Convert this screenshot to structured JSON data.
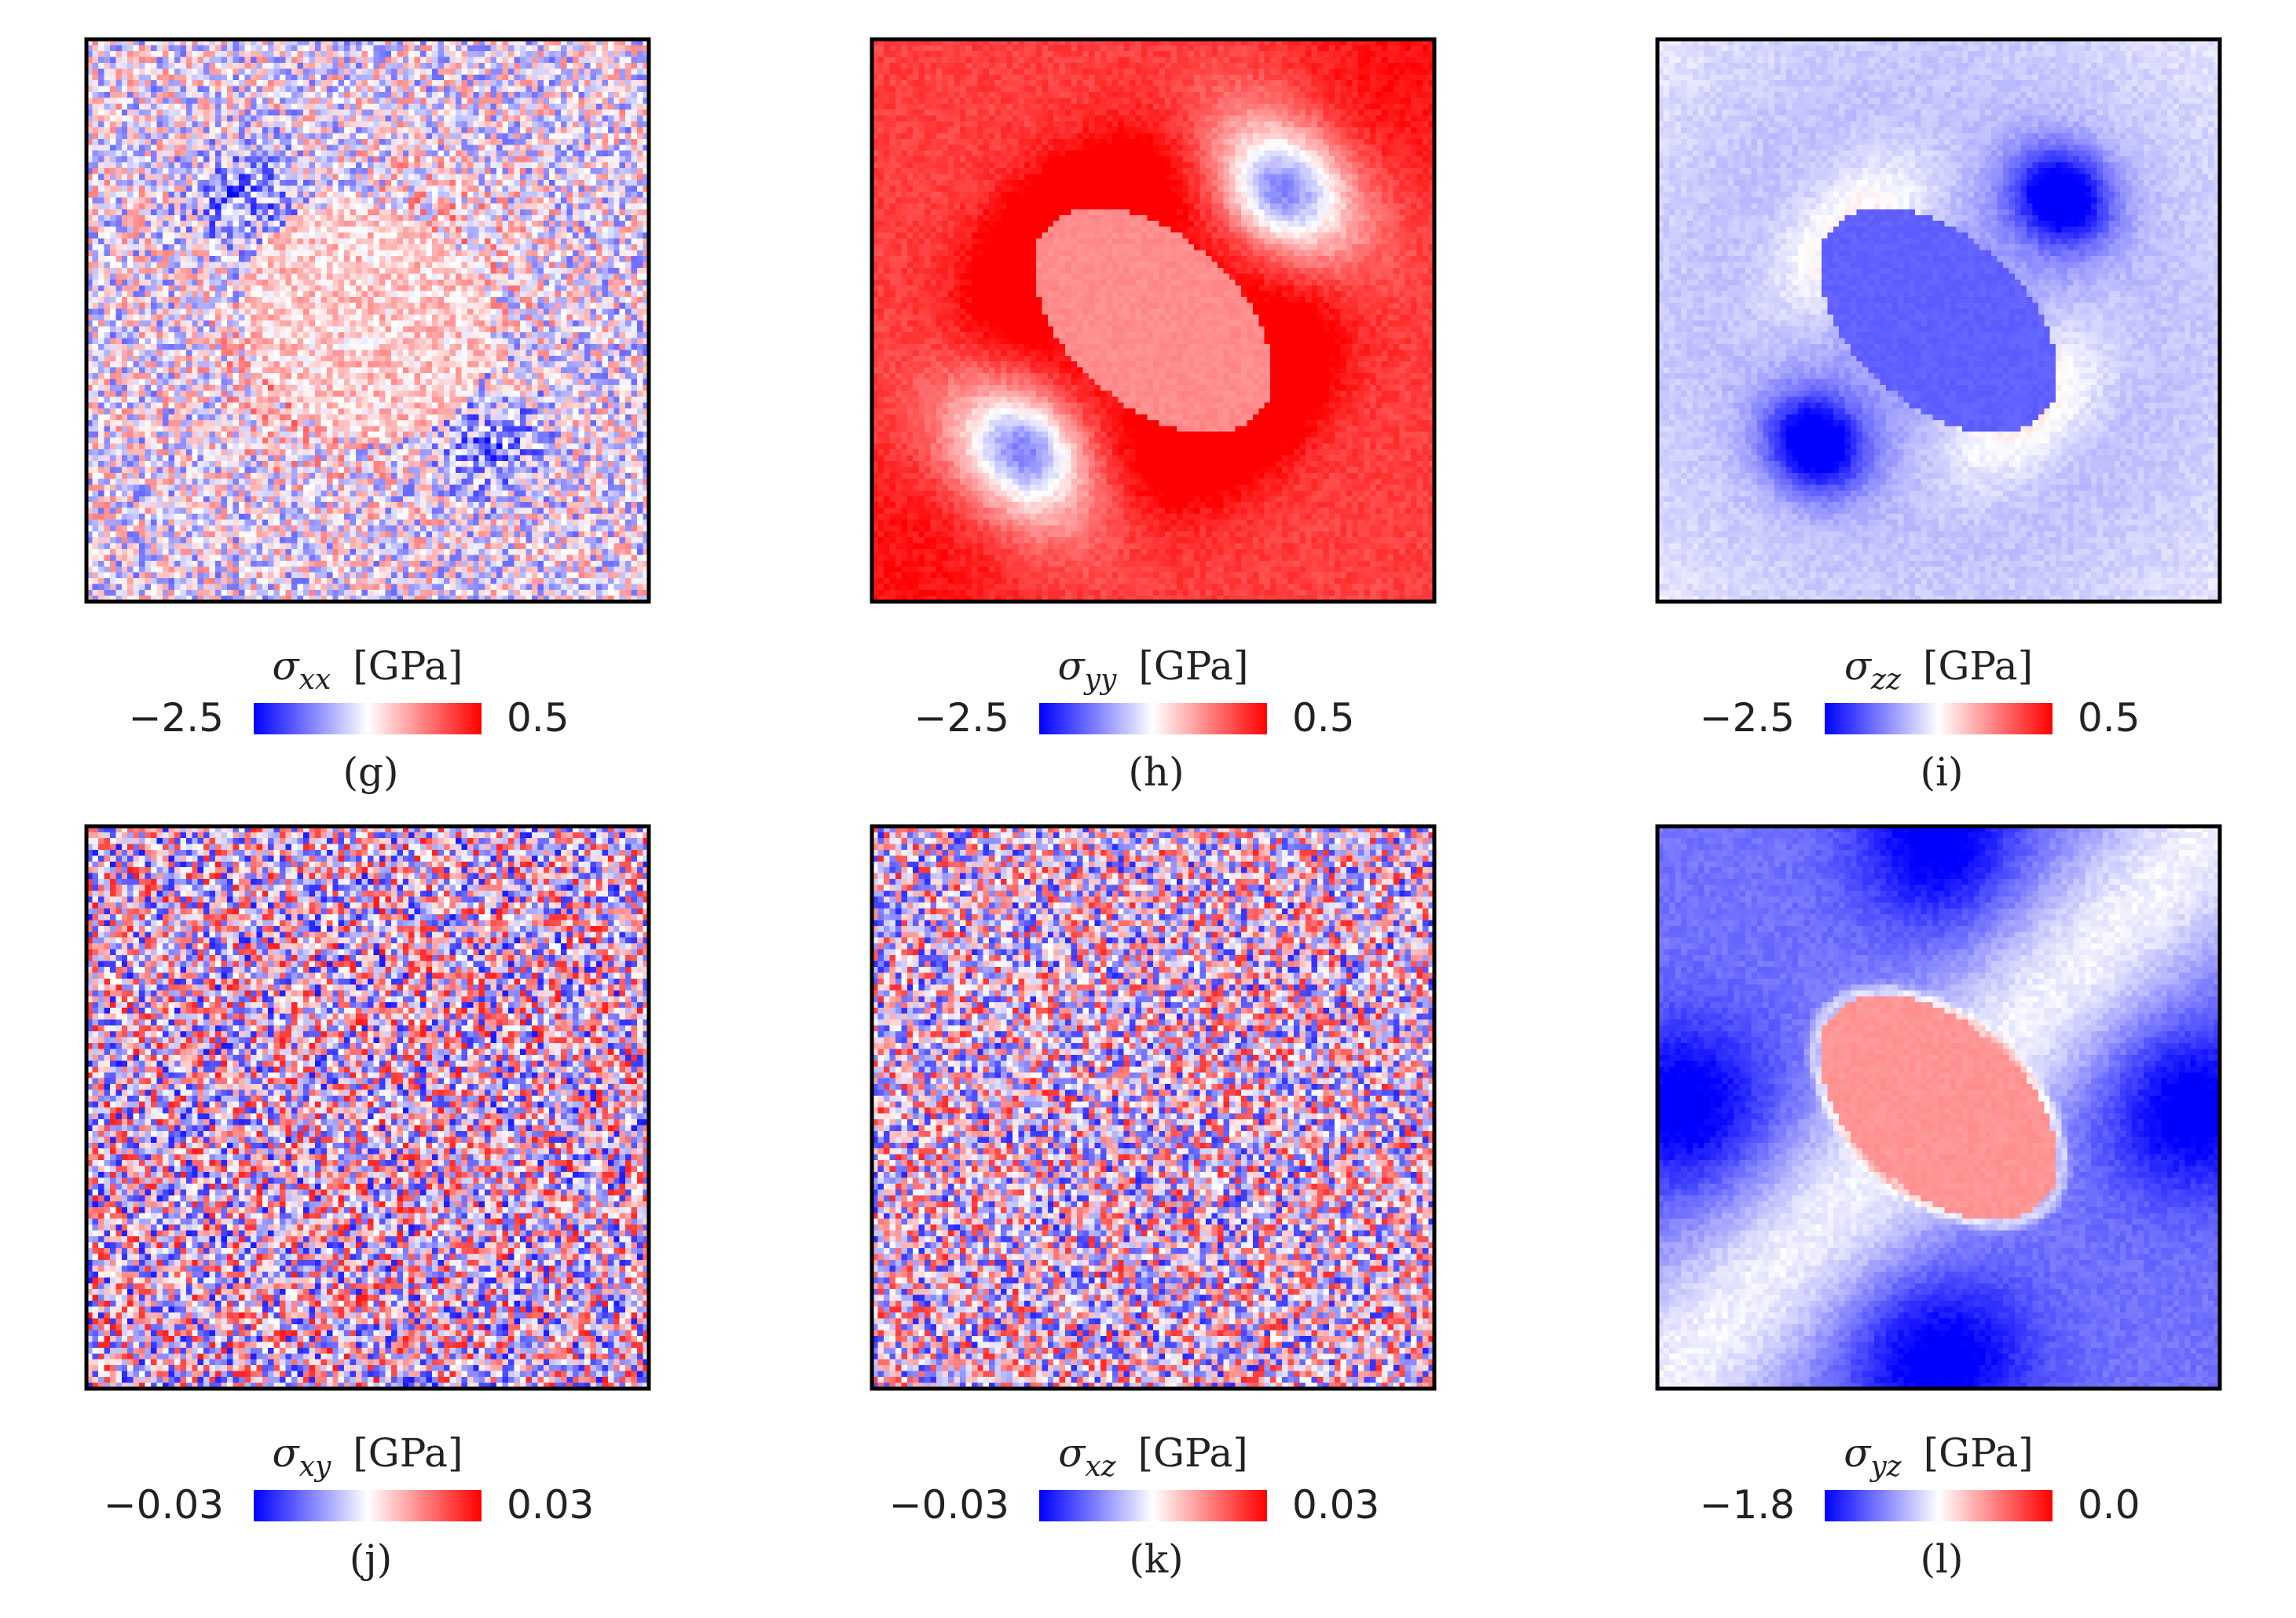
{
  "colors": {
    "negative": "#0000ff",
    "neutral": "#ffffff",
    "positive": "#ff0000",
    "frame": "#000000"
  },
  "chart_data": [
    {
      "type": "heatmap",
      "panel": "(g)",
      "symbol": "σ",
      "subscript": "xx",
      "unit": "[GPa]",
      "colorbar": {
        "min_label": "−2.5",
        "max_label": "0.5",
        "vmin": -2.5,
        "vmax": 0.5,
        "colormap": "bwr"
      },
      "field": "inclusion-antisymmetric",
      "inclusion_level": 0.18,
      "matrix_level": -0.05,
      "lobe_levels": [
        -0.45,
        0.2
      ],
      "noise": 0.55,
      "lobe_axis": "antidiagonal"
    },
    {
      "type": "heatmap",
      "panel": "(h)",
      "symbol": "σ",
      "subscript": "yy",
      "unit": "[GPa]",
      "colorbar": {
        "min_label": "−2.5",
        "max_label": "0.5",
        "vmin": -2.5,
        "vmax": 0.5,
        "colormap": "bwr"
      },
      "field": "tensile-matrix",
      "inclusion_level": 0.45,
      "matrix_level": 0.75,
      "lobe_levels": [
        -0.6,
        1.0
      ],
      "noise": 0.08,
      "lobe_axis": "diagonal"
    },
    {
      "type": "heatmap",
      "panel": "(i)",
      "symbol": "σ",
      "subscript": "zz",
      "unit": "[GPa]",
      "colorbar": {
        "min_label": "−2.5",
        "max_label": "0.5",
        "vmin": -2.5,
        "vmax": 0.5,
        "colormap": "bwr"
      },
      "field": "compressive-inclusion",
      "inclusion_level": -0.62,
      "matrix_level": -0.3,
      "lobe_levels": [
        -1.0,
        0.45
      ],
      "noise": 0.06,
      "lobe_axis": "diagonal"
    },
    {
      "type": "heatmap",
      "panel": "(j)",
      "symbol": "σ",
      "subscript": "xy",
      "unit": "[GPa]",
      "colorbar": {
        "min_label": "−0.03",
        "max_label": "0.03",
        "vmin": -0.03,
        "vmax": 0.03,
        "colormap": "bwr"
      },
      "field": "noise",
      "inclusion_level": 0.0,
      "matrix_level": 0.0,
      "lobe_levels": [
        0,
        0
      ],
      "noise": 0.9,
      "lobe_axis": "none"
    },
    {
      "type": "heatmap",
      "panel": "(k)",
      "symbol": "σ",
      "subscript": "xz",
      "unit": "[GPa]",
      "colorbar": {
        "min_label": "−0.03",
        "max_label": "0.03",
        "vmin": -0.03,
        "vmax": 0.03,
        "colormap": "bwr"
      },
      "field": "noise",
      "inclusion_level": 0.0,
      "matrix_level": 0.0,
      "lobe_levels": [
        0,
        0
      ],
      "noise": 0.85,
      "lobe_axis": "none"
    },
    {
      "type": "heatmap",
      "panel": "(l)",
      "symbol": "σ",
      "subscript": "yz",
      "unit": "[GPa]",
      "colorbar": {
        "min_label": "−1.8",
        "max_label": "0.0",
        "vmin": -1.8,
        "vmax": 0.0,
        "colormap": "bwr"
      },
      "field": "shear-cross",
      "inclusion_level": 0.42,
      "matrix_level": -0.55,
      "lobe_levels": [
        -1.0,
        -0.1
      ],
      "noise": 0.06,
      "lobe_axis": "cross"
    }
  ]
}
